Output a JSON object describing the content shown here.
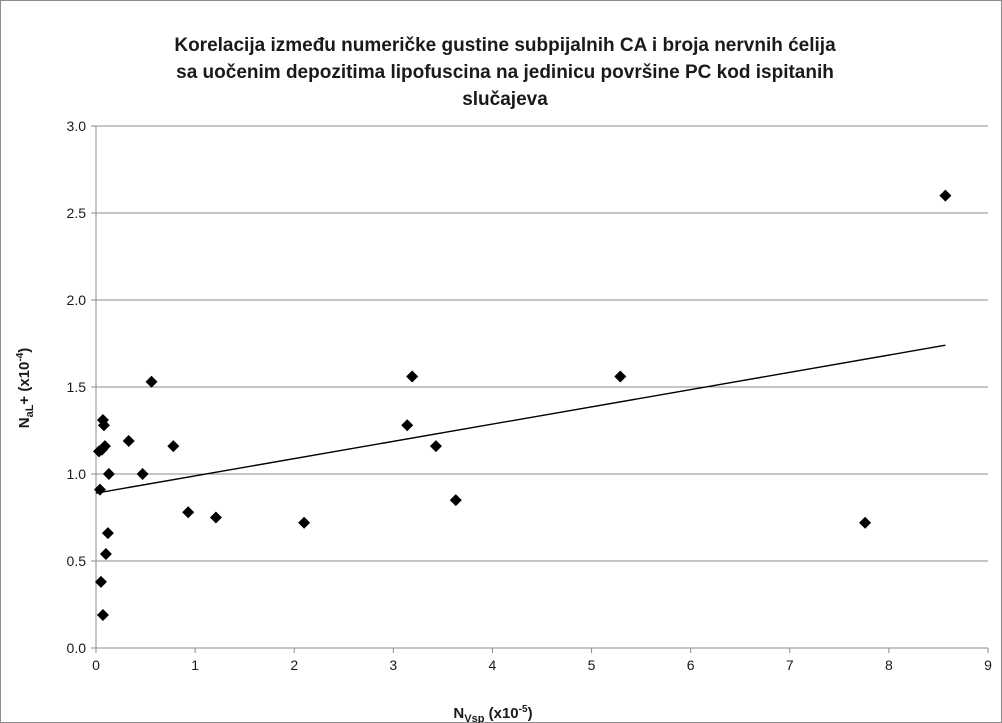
{
  "chart_data": {
    "type": "scatter",
    "title_lines": [
      "Korelacija između numeričke gustine subpijalnih CA i broja nervnih ćelija",
      "sa uočenim depozitima lipofuscina na jedinicu površine PC kod ispitanih",
      "slučajeva"
    ],
    "xlabel": {
      "main": "N",
      "sub": "Vsp",
      "pre": " (x10",
      "sup": "-5",
      "post": ")"
    },
    "ylabel": {
      "main": "N",
      "sub": "aL",
      "pre": "+ (x10",
      "sup": "-4",
      "post": ")"
    },
    "xlim": [
      0,
      9
    ],
    "ylim": [
      0,
      3
    ],
    "x_ticks": [
      0,
      1,
      2,
      3,
      4,
      5,
      6,
      7,
      8,
      9
    ],
    "y_ticks": [
      "0.0",
      "0.5",
      "1.0",
      "1.5",
      "2.0",
      "2.5",
      "3.0"
    ],
    "grid": {
      "horizontal": true,
      "vertical": false
    },
    "legend": "none",
    "marker": "diamond",
    "marker_color": "#000000",
    "points": [
      [
        0.03,
        1.13
      ],
      [
        0.06,
        1.14
      ],
      [
        0.07,
        1.31
      ],
      [
        0.08,
        1.28
      ],
      [
        0.09,
        1.16
      ],
      [
        0.04,
        0.91
      ],
      [
        0.13,
        1.0
      ],
      [
        0.12,
        0.66
      ],
      [
        0.1,
        0.54
      ],
      [
        0.05,
        0.38
      ],
      [
        0.07,
        0.19
      ],
      [
        0.33,
        1.19
      ],
      [
        0.47,
        1.0
      ],
      [
        0.56,
        1.53
      ],
      [
        0.78,
        1.16
      ],
      [
        0.93,
        0.78
      ],
      [
        1.21,
        0.75
      ],
      [
        2.1,
        0.72
      ],
      [
        3.14,
        1.28
      ],
      [
        3.19,
        1.56
      ],
      [
        3.43,
        1.16
      ],
      [
        3.63,
        0.85
      ],
      [
        5.29,
        1.56
      ],
      [
        7.76,
        0.72
      ],
      [
        8.57,
        2.6
      ]
    ],
    "trendline": {
      "type": "linear",
      "x": [
        0,
        8.57
      ],
      "y": [
        0.89,
        1.74
      ]
    }
  }
}
